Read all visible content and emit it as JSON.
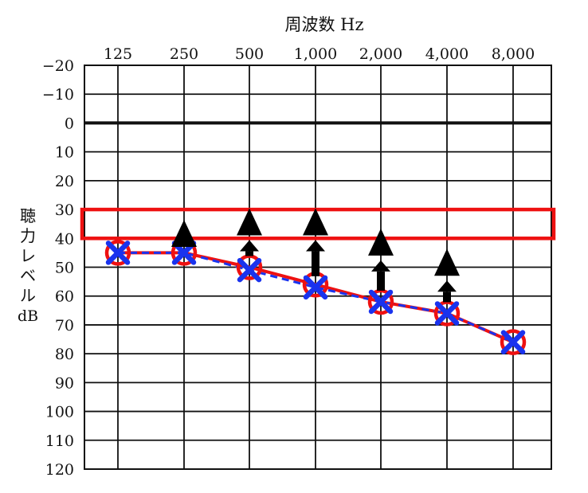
{
  "chart_data": {
    "type": "line",
    "title": "周波数 Hz",
    "ylabel_chars": [
      "聴",
      "力",
      "レ",
      "ベ",
      "ル",
      "dB"
    ],
    "x_categories": [
      "125",
      "250",
      "500",
      "1,000",
      "2,000",
      "4,000",
      "8,000"
    ],
    "y_ticks": [
      "−20",
      "−10",
      "0",
      "10",
      "20",
      "30",
      "40",
      "50",
      "60",
      "70",
      "80",
      "90",
      "100",
      "110",
      "120"
    ],
    "ylim": [
      -20,
      120
    ],
    "y_inverted": true,
    "reference_line_db": 0,
    "highlight_band_db": [
      30,
      40
    ],
    "series": [
      {
        "marker": "circle",
        "color": "#ee1111",
        "line": "solid",
        "values": [
          45,
          45,
          50,
          56,
          62,
          66,
          76
        ]
      },
      {
        "marker": "cross",
        "color": "#1a33ee",
        "line": "dashed",
        "values": [
          45,
          45,
          51,
          57,
          62,
          66,
          76
        ]
      }
    ],
    "aided_thresholds": [
      {
        "category": "250",
        "arrow_from_db": 45,
        "value": 38
      },
      {
        "category": "500",
        "arrow_from_db": 50,
        "value": 34
      },
      {
        "category": "1,000",
        "arrow_from_db": 57,
        "value": 34
      },
      {
        "category": "2,000",
        "arrow_from_db": 62,
        "value": 41
      },
      {
        "category": "4,000",
        "arrow_from_db": 66,
        "value": 48
      }
    ],
    "colors": {
      "grid": "#111111",
      "band": "#ee1111",
      "arrow": "#000000"
    }
  }
}
